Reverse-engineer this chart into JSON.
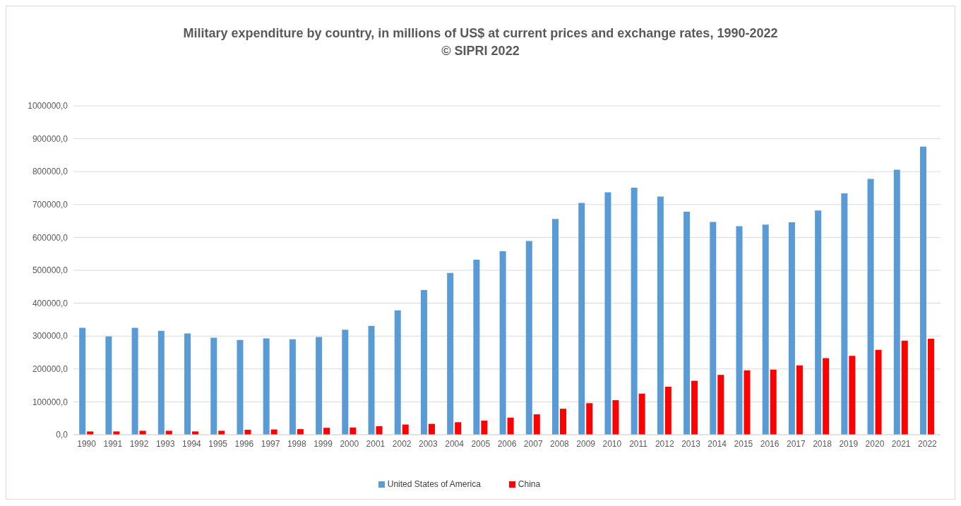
{
  "chart_data": {
    "type": "bar",
    "title": "Military expenditure by country, in millions of US$ at current prices and exchange rates, 1990-2022",
    "subtitle": "© SIPRI 2022",
    "categories": [
      "1990",
      "1991",
      "1992",
      "1993",
      "1994",
      "1995",
      "1996",
      "1997",
      "1998",
      "1999",
      "2000",
      "2001",
      "2002",
      "2003",
      "2004",
      "2005",
      "2006",
      "2007",
      "2008",
      "2009",
      "2010",
      "2011",
      "2012",
      "2013",
      "2014",
      "2015",
      "2016",
      "2017",
      "2018",
      "2019",
      "2020",
      "2021",
      "2022"
    ],
    "series": [
      {
        "name": "United States of America",
        "color": "#5b9bd5",
        "values": [
          325000,
          299000,
          325000,
          316000,
          308000,
          295000,
          288000,
          293000,
          290000,
          297000,
          319000,
          331000,
          378000,
          440000,
          492000,
          532000,
          558000,
          589000,
          656000,
          705000,
          737000,
          751000,
          724000,
          678000,
          647000,
          634000,
          639000,
          646000,
          682000,
          734000,
          778000,
          806000,
          876000
        ]
      },
      {
        "name": "China",
        "color": "#ff0000",
        "values": [
          10000,
          10000,
          12000,
          12000,
          10000,
          12000,
          15000,
          16000,
          17000,
          21000,
          22000,
          26000,
          31000,
          33000,
          38000,
          43000,
          52000,
          62000,
          79000,
          96000,
          105000,
          125000,
          146000,
          164000,
          182000,
          196000,
          198000,
          211000,
          233000,
          240000,
          258000,
          286000,
          292000
        ]
      }
    ],
    "ylim": [
      0,
      1000000
    ],
    "yticks": [
      {
        "value": 0,
        "label": "0,0"
      },
      {
        "value": 100000,
        "label": "100000,0"
      },
      {
        "value": 200000,
        "label": "200000,0"
      },
      {
        "value": 300000,
        "label": "300000,0"
      },
      {
        "value": 400000,
        "label": "400000,0"
      },
      {
        "value": 500000,
        "label": "500000,0"
      },
      {
        "value": 600000,
        "label": "600000,0"
      },
      {
        "value": 700000,
        "label": "700000,0"
      },
      {
        "value": 800000,
        "label": "800000,0"
      },
      {
        "value": 900000,
        "label": "900000,0"
      },
      {
        "value": 1000000,
        "label": "1000000,0"
      }
    ],
    "grid": "y",
    "legend": "bottom"
  }
}
